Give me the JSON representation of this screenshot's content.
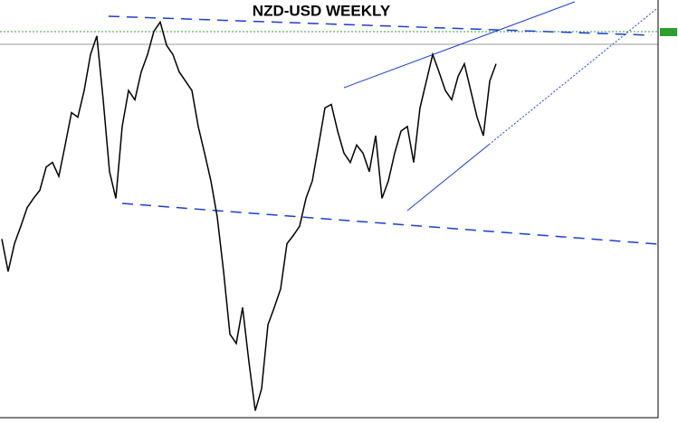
{
  "chart_data": {
    "type": "line",
    "title": "NZD-USD WEEKLY",
    "color": "#000000",
    "ylim": [
      0.48,
      0.84
    ],
    "values": [
      0.634,
      0.606,
      0.63,
      0.645,
      0.661,
      0.669,
      0.676,
      0.696,
      0.7,
      0.688,
      0.715,
      0.743,
      0.739,
      0.762,
      0.793,
      0.809,
      0.754,
      0.692,
      0.669,
      0.731,
      0.762,
      0.754,
      0.778,
      0.793,
      0.813,
      0.821,
      0.801,
      0.793,
      0.778,
      0.77,
      0.762,
      0.731,
      0.708,
      0.684,
      0.653,
      0.606,
      0.552,
      0.544,
      0.575,
      0.528,
      0.486,
      0.505,
      0.56,
      0.575,
      0.591,
      0.63,
      0.637,
      0.645,
      0.669,
      0.684,
      0.715,
      0.747,
      0.75,
      0.727,
      0.708,
      0.7,
      0.715,
      0.708,
      0.692,
      0.723,
      0.669,
      0.684,
      0.708,
      0.727,
      0.731,
      0.7,
      0.747,
      0.77,
      0.793,
      0.778,
      0.762,
      0.754,
      0.774,
      0.785,
      0.762,
      0.739,
      0.723,
      0.77,
      0.785
    ]
  }
}
